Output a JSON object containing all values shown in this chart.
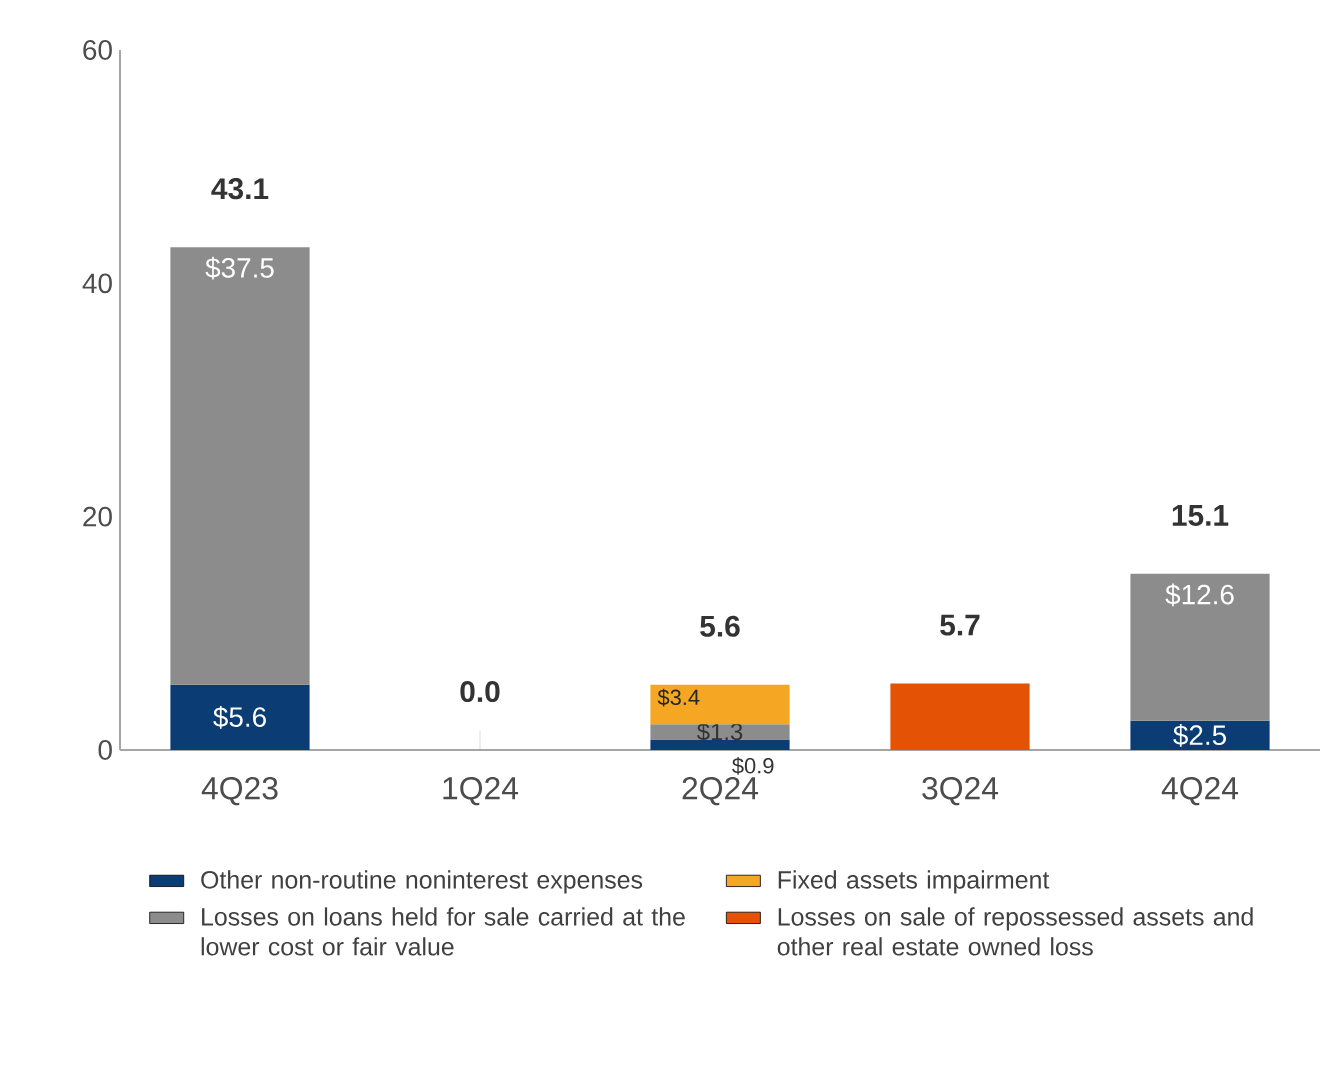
{
  "chart_data": {
    "type": "bar",
    "stacked": true,
    "categories": [
      "4Q23",
      "1Q24",
      "2Q24",
      "3Q24",
      "4Q24"
    ],
    "ylim": [
      0,
      60
    ],
    "yticks": [
      0,
      20,
      40,
      60
    ],
    "series": [
      {
        "name": "Other non-routine noninterest expenses",
        "color": "#0b3c73",
        "values": [
          5.6,
          null,
          0.9,
          null,
          2.5
        ],
        "value_labels": [
          "$5.6",
          null,
          "$0.9",
          null,
          "$2.5"
        ]
      },
      {
        "name": "Losses on loans held for sale carried at the lower cost or fair value",
        "color": "#8c8c8c",
        "values": [
          37.5,
          null,
          1.3,
          null,
          12.6
        ],
        "value_labels": [
          "$37.5",
          null,
          "$1.3",
          null,
          "$12.6"
        ]
      },
      {
        "name": "Fixed assets impairment",
        "color": "#f5a623",
        "values": [
          null,
          null,
          3.4,
          null,
          null
        ],
        "value_labels": [
          null,
          null,
          "$3.4",
          null,
          null
        ]
      },
      {
        "name": "Losses on sale of repossessed assets and other real estate owned loss",
        "color": "#e35205",
        "values": [
          null,
          null,
          null,
          5.7,
          null
        ]
      }
    ],
    "totals": [
      "43.1",
      "0.0",
      "5.6",
      "5.7",
      "15.1"
    ],
    "grid": false,
    "legend": "bottom"
  }
}
